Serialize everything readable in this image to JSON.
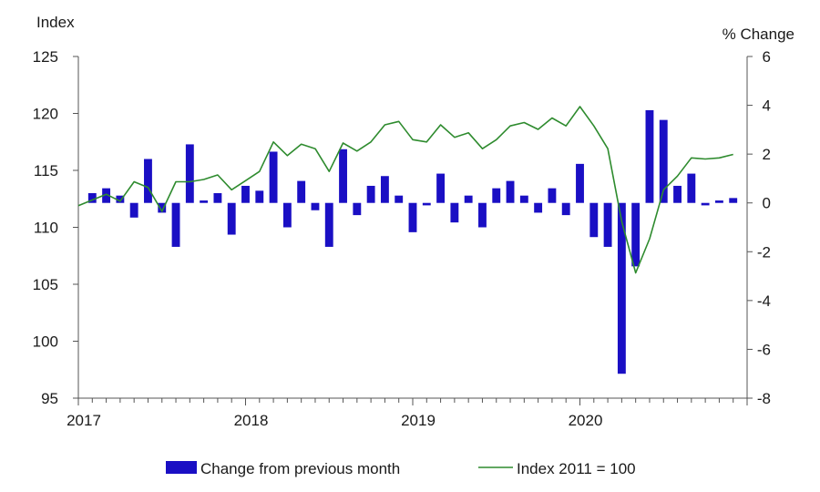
{
  "chart_data": {
    "type": "bar+line",
    "left_axis_title": "Index",
    "right_axis_title": "% Change",
    "left_ylim": [
      95,
      125
    ],
    "left_ticks": [
      "95",
      "100",
      "105",
      "110",
      "115",
      "120",
      "125"
    ],
    "right_ylim": [
      -8,
      6
    ],
    "right_ticks": [
      "-8",
      "-6",
      "-4",
      "-2",
      "0",
      "2",
      "4",
      "6"
    ],
    "x_ticks": [
      "2017",
      "2018",
      "2019",
      "2020"
    ],
    "series": [
      {
        "name": "Change from previous month",
        "kind": "bar",
        "axis": "right",
        "color": "#1a0fc4",
        "values": [
          0.4,
          0.6,
          0.3,
          -0.6,
          1.8,
          -0.4,
          -1.8,
          2.4,
          0.1,
          0.4,
          -1.3,
          0.7,
          0.5,
          2.1,
          -1.0,
          0.9,
          -0.3,
          -1.8,
          2.2,
          -0.5,
          0.7,
          1.1,
          0.3,
          -1.2,
          -0.1,
          1.2,
          -0.8,
          0.3,
          -1.0,
          0.6,
          0.9,
          0.3,
          -0.4,
          0.6,
          -0.5,
          1.6,
          -1.4,
          -1.8,
          -7.0,
          -2.6,
          3.8,
          3.4,
          0.7,
          1.2,
          -0.1,
          0.1,
          0.2
        ]
      },
      {
        "name": "Index 2011 = 100",
        "kind": "line",
        "axis": "left",
        "color": "#2e8b2e",
        "values": [
          111.9,
          112.4,
          112.9,
          112.3,
          114.0,
          113.5,
          111.4,
          114.0,
          114.0,
          114.2,
          114.6,
          113.3,
          114.1,
          114.9,
          117.5,
          116.3,
          117.3,
          116.9,
          114.9,
          117.4,
          116.7,
          117.5,
          119.0,
          119.3,
          117.7,
          117.5,
          119.0,
          117.9,
          118.3,
          116.9,
          117.7,
          118.9,
          119.2,
          118.6,
          119.6,
          118.9,
          120.6,
          118.9,
          116.9,
          110.5,
          106.0,
          109.0,
          113.3,
          114.5,
          116.1,
          116.0,
          116.1,
          116.4
        ]
      }
    ],
    "legend_position": "bottom",
    "grid": false
  }
}
